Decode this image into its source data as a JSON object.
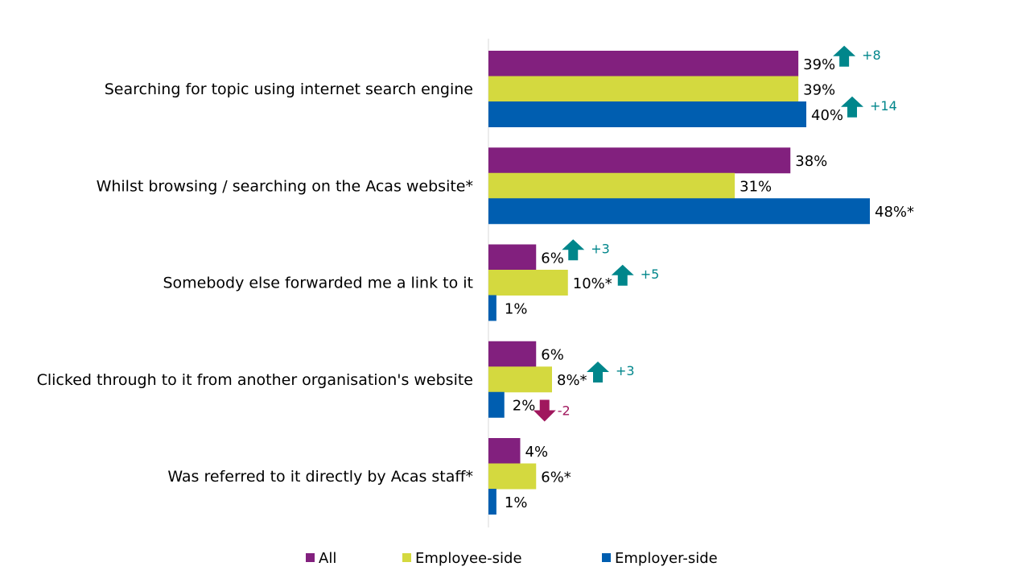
{
  "chart_data": {
    "type": "bar",
    "orientation": "horizontal",
    "categories": [
      "Searching for topic using internet search engine",
      "Whilst browsing / searching on the Acas website*",
      "Somebody else forwarded me a link to it",
      "Clicked through to it from another organisation's website",
      "Was referred to it directly by Acas staff*"
    ],
    "series": [
      {
        "name": "All",
        "color": "#82207E",
        "values": [
          39,
          38,
          6,
          6,
          4
        ],
        "labels": [
          "39%",
          "38%",
          "6%",
          "6%",
          "4%"
        ]
      },
      {
        "name": "Employee-side",
        "color": "#D4D93F",
        "values": [
          39,
          31,
          10,
          8,
          6
        ],
        "labels": [
          "39%",
          "31%",
          "10%*",
          "8%*",
          "6%*"
        ]
      },
      {
        "name": "Employer-side",
        "color": "#005EB0",
        "values": [
          40,
          48,
          1,
          2,
          1
        ],
        "labels": [
          "40%",
          "48%*",
          "1%",
          "2%",
          "1%"
        ]
      }
    ],
    "annotations": [
      {
        "category": 0,
        "series": 0,
        "text": "+8",
        "direction": "up"
      },
      {
        "category": 0,
        "series": 2,
        "text": "+14",
        "direction": "up"
      },
      {
        "category": 2,
        "series": 0,
        "text": "+3",
        "direction": "up"
      },
      {
        "category": 2,
        "series": 1,
        "text": "+5",
        "direction": "up"
      },
      {
        "category": 3,
        "series": 1,
        "text": "+3",
        "direction": "up"
      },
      {
        "category": 3,
        "series": 2,
        "text": "-2",
        "direction": "down"
      }
    ],
    "colors": {
      "up": "#00868B",
      "down": "#A0175D"
    },
    "xlim": [
      0,
      50
    ],
    "grid": false,
    "legend_position": "bottom",
    "title": "",
    "xlabel": "",
    "ylabel": ""
  }
}
